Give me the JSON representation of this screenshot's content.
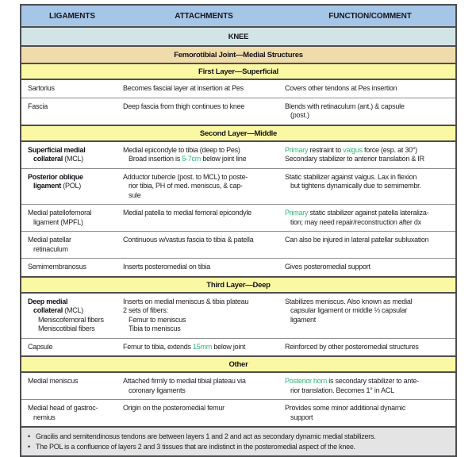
{
  "colors": {
    "header_bg": "#a6c6e8",
    "knee_bg": "#d3e4e6",
    "joint_bg": "#f0dcab",
    "layer_bg": "#fbf8a4",
    "footer_bg": "#e4e4e4",
    "border_dark": "#4e4e50",
    "border_light": "#8d8d8d",
    "green": "#2eb673"
  },
  "table": {
    "columns": [
      "LIGAMENTS",
      "ATTACHMENTS",
      "FUNCTION/COMMENT"
    ],
    "bullet": "•",
    "rows": [
      {
        "type": "section",
        "style": "knee",
        "label": "KNEE"
      },
      {
        "type": "section",
        "style": "joint",
        "label": "Femorotibial Joint—Medial Structures"
      },
      {
        "type": "section",
        "style": "layer",
        "label": "First Layer—Superficial"
      },
      {
        "type": "data",
        "ligament": [
          {
            "ind": 0,
            "seg": [
              {
                "t": "Sartorius"
              }
            ]
          }
        ],
        "attachment": [
          {
            "ind": 0,
            "seg": [
              {
                "t": "Becomes fascial layer at insertion at Pes"
              }
            ]
          }
        ],
        "function": [
          {
            "ind": 0,
            "seg": [
              {
                "t": "Covers other tendons at Pes insertion"
              }
            ]
          }
        ]
      },
      {
        "type": "data",
        "ligament": [
          {
            "ind": 0,
            "seg": [
              {
                "t": "Fascia"
              }
            ]
          }
        ],
        "attachment": [
          {
            "ind": 0,
            "seg": [
              {
                "t": "Deep fascia from thigh continues to knee"
              }
            ]
          }
        ],
        "function": [
          {
            "ind": 0,
            "seg": [
              {
                "t": "Blends with retinaculum (ant.) & capsule"
              }
            ]
          },
          {
            "ind": 1,
            "seg": [
              {
                "t": "(post.)"
              }
            ]
          }
        ]
      },
      {
        "type": "section",
        "style": "layer",
        "label": "Second Layer—Middle"
      },
      {
        "type": "data",
        "ligament": [
          {
            "ind": 0,
            "seg": [
              {
                "t": "Superficial medial",
                "b": true
              }
            ]
          },
          {
            "ind": 1,
            "seg": [
              {
                "t": "collateral",
                "b": true
              },
              {
                "t": " (MCL)"
              }
            ]
          }
        ],
        "attachment": [
          {
            "ind": 0,
            "seg": [
              {
                "t": "Medial epicondyle to tibia (deep to Pes)"
              }
            ]
          },
          {
            "ind": 1,
            "seg": [
              {
                "t": "Broad insertion is "
              },
              {
                "t": "5-7cm",
                "g": true
              },
              {
                "t": " below joint line"
              }
            ]
          }
        ],
        "function": [
          {
            "ind": 0,
            "seg": [
              {
                "t": "Primary",
                "g": true
              },
              {
                "t": " restraint to "
              },
              {
                "t": "valgus",
                "g": true
              },
              {
                "t": " force (esp. at 30°)"
              }
            ]
          },
          {
            "ind": 0,
            "seg": [
              {
                "t": "Secondary stabilizer to anterior translation & IR"
              }
            ]
          }
        ]
      },
      {
        "type": "data",
        "ligament": [
          {
            "ind": 0,
            "seg": [
              {
                "t": "Posterior oblique",
                "b": true
              }
            ]
          },
          {
            "ind": 1,
            "seg": [
              {
                "t": "ligament",
                "b": true
              },
              {
                "t": " (POL)"
              }
            ]
          }
        ],
        "attachment": [
          {
            "ind": 0,
            "seg": [
              {
                "t": "Adductor tubercle (post. to MCL) to poste-"
              }
            ]
          },
          {
            "ind": 1,
            "seg": [
              {
                "t": "rior tibia, PH of med. meniscus, & cap-"
              }
            ]
          },
          {
            "ind": 1,
            "seg": [
              {
                "t": "sule"
              }
            ]
          }
        ],
        "function": [
          {
            "ind": 0,
            "seg": [
              {
                "t": "Static stabilizer against valgus. Lax in flexion"
              }
            ]
          },
          {
            "ind": 1,
            "seg": [
              {
                "t": "but tightens dynamically due to semimembr."
              }
            ]
          }
        ]
      },
      {
        "type": "data",
        "ligament": [
          {
            "ind": 0,
            "seg": [
              {
                "t": "Medial patellofemoral"
              }
            ]
          },
          {
            "ind": 1,
            "seg": [
              {
                "t": "ligament (MPFL)"
              }
            ]
          }
        ],
        "attachment": [
          {
            "ind": 0,
            "seg": [
              {
                "t": "Medial patella to medial femoral epicondyle"
              }
            ]
          }
        ],
        "function": [
          {
            "ind": 0,
            "seg": [
              {
                "t": "Primary",
                "g": true
              },
              {
                "t": " static stabilizer against patella lateraliza-"
              }
            ]
          },
          {
            "ind": 1,
            "seg": [
              {
                "t": "tion; may need repair/reconstruction after dx"
              }
            ]
          }
        ]
      },
      {
        "type": "data",
        "ligament": [
          {
            "ind": 0,
            "seg": [
              {
                "t": "Medial patellar"
              }
            ]
          },
          {
            "ind": 1,
            "seg": [
              {
                "t": "retinaculum"
              }
            ]
          }
        ],
        "attachment": [
          {
            "ind": 0,
            "seg": [
              {
                "t": "Continuous w/vastus fascia to tibia & patella"
              }
            ]
          }
        ],
        "function": [
          {
            "ind": 0,
            "seg": [
              {
                "t": "Can also be injured in lateral patellar subluxation"
              }
            ]
          }
        ]
      },
      {
        "type": "data",
        "ligament": [
          {
            "ind": 0,
            "seg": [
              {
                "t": "Semimembranosus"
              }
            ]
          }
        ],
        "attachment": [
          {
            "ind": 0,
            "seg": [
              {
                "t": "Inserts posteromedial on tibia"
              }
            ]
          }
        ],
        "function": [
          {
            "ind": 0,
            "seg": [
              {
                "t": "Gives posteromedial support"
              }
            ]
          }
        ]
      },
      {
        "type": "section",
        "style": "layer",
        "label": "Third Layer—Deep"
      },
      {
        "type": "data",
        "ligament": [
          {
            "ind": 0,
            "seg": [
              {
                "t": "Deep medial",
                "b": true
              }
            ]
          },
          {
            "ind": 1,
            "seg": [
              {
                "t": "collateral",
                "b": true
              },
              {
                "t": " (MCL)"
              }
            ]
          },
          {
            "ind": 2,
            "seg": [
              {
                "t": "Meniscofemoral fibers"
              }
            ]
          },
          {
            "ind": 2,
            "seg": [
              {
                "t": "Meniscotibial fibers"
              }
            ]
          }
        ],
        "attachment": [
          {
            "ind": 0,
            "seg": [
              {
                "t": "Inserts on medial meniscus & tibia plateau"
              }
            ]
          },
          {
            "ind": 0,
            "seg": [
              {
                "t": "2 sets of fibers:"
              }
            ]
          },
          {
            "ind": 1,
            "seg": [
              {
                "t": "Femur to meniscus"
              }
            ]
          },
          {
            "ind": 1,
            "seg": [
              {
                "t": "Tibia to meniscus"
              }
            ]
          }
        ],
        "function": [
          {
            "ind": 0,
            "seg": [
              {
                "t": "Stabilizes meniscus. Also known as medial"
              }
            ]
          },
          {
            "ind": 1,
            "seg": [
              {
                "t": "capsular ligament or middle ⅓ capsular"
              }
            ]
          },
          {
            "ind": 1,
            "seg": [
              {
                "t": "ligament"
              }
            ]
          }
        ]
      },
      {
        "type": "data",
        "ligament": [
          {
            "ind": 0,
            "seg": [
              {
                "t": "Capsule"
              }
            ]
          }
        ],
        "attachment": [
          {
            "ind": 0,
            "seg": [
              {
                "t": "Femur to tibia, extends "
              },
              {
                "t": "15mm",
                "g": true
              },
              {
                "t": " below joint"
              }
            ]
          }
        ],
        "function": [
          {
            "ind": 0,
            "seg": [
              {
                "t": "Reinforced by other posteromedial structures"
              }
            ]
          }
        ]
      },
      {
        "type": "section",
        "style": "layer",
        "label": "Other"
      },
      {
        "type": "data",
        "ligament": [
          {
            "ind": 0,
            "seg": [
              {
                "t": "Medial meniscus"
              }
            ]
          }
        ],
        "attachment": [
          {
            "ind": 0,
            "seg": [
              {
                "t": "Attached firmly to medial tibial plateau via"
              }
            ]
          },
          {
            "ind": 1,
            "seg": [
              {
                "t": "coronary ligaments"
              }
            ]
          }
        ],
        "function": [
          {
            "ind": 0,
            "seg": [
              {
                "t": "Posterior horn",
                "g": true
              },
              {
                "t": " is secondary stabilizer to ante-"
              }
            ]
          },
          {
            "ind": 1,
            "seg": [
              {
                "t": "rior translation. Becomes 1° in ACL"
              }
            ]
          }
        ]
      },
      {
        "type": "data",
        "ligament": [
          {
            "ind": 0,
            "seg": [
              {
                "t": "Medial head of gastroc-"
              }
            ]
          },
          {
            "ind": 1,
            "seg": [
              {
                "t": "nemius"
              }
            ]
          }
        ],
        "attachment": [
          {
            "ind": 0,
            "seg": [
              {
                "t": "Origin on the posteromedial femur"
              }
            ]
          }
        ],
        "function": [
          {
            "ind": 0,
            "seg": [
              {
                "t": "Provides some minor additional dynamic"
              }
            ]
          },
          {
            "ind": 1,
            "seg": [
              {
                "t": "support"
              }
            ]
          }
        ]
      }
    ],
    "footnotes": [
      "Gracilis and semitendinosus tendons are between layers 1 and 2 and act as secondary dynamic medial stabilizers.",
      "The POL is a confluence of layers 2 and 3 tissues that are indistinct in the posteromedial aspect of the knee."
    ]
  }
}
